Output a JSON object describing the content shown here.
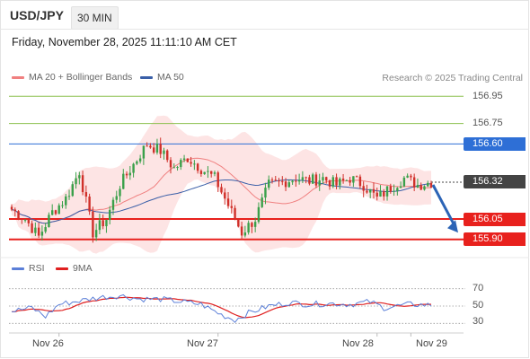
{
  "header": {
    "symbol": "USD/JPY",
    "timeframe": "30 MIN",
    "datetime": "Friday, November 28, 2025 11:11:10 AM CET"
  },
  "legend": {
    "ma20_label": "MA 20 + Bollinger Bands",
    "ma50_label": "MA 50",
    "source": "Research © 2025 Trading Central"
  },
  "colors": {
    "ma20": "#f08080",
    "ma50": "#3a5fa8",
    "band_fill": "#fde4e4",
    "up_candle": "#3aa04a",
    "down_candle": "#d0302a",
    "resistance_green": "#8cc04e",
    "pivot_blue": "#2e6fd6",
    "support_red": "#e8211d",
    "arrow": "#2c64b6",
    "rsi": "#5b7fd8",
    "rsi_ma": "#e02020"
  },
  "chart_data": [
    {
      "type": "candlestick",
      "title": "USD/JPY",
      "timeframe": "30 MIN",
      "ylim": [
        155.8,
        157.05
      ],
      "grid": false,
      "x_tick_labels": [
        "Nov 26",
        "Nov 27",
        "Nov 28",
        "Nov 29"
      ],
      "levels": [
        {
          "value": 156.95,
          "label": "156.95",
          "kind": "resistance",
          "color": "#8cc04e"
        },
        {
          "value": 156.75,
          "label": "156.75",
          "kind": "resistance",
          "color": "#8cc04e"
        },
        {
          "value": 156.6,
          "label": "156.60",
          "kind": "pivot",
          "color": "#2e6fd6"
        },
        {
          "value": 156.32,
          "label": "156.32",
          "kind": "last",
          "color": "#555555"
        },
        {
          "value": 156.05,
          "label": "156.05",
          "kind": "support",
          "color": "#e8211d"
        },
        {
          "value": 155.9,
          "label": "155.90",
          "kind": "support",
          "color": "#e8211d"
        }
      ],
      "anchors": [
        {
          "i": 0,
          "v": 156.12
        },
        {
          "i": 4,
          "v": 156.05
        },
        {
          "i": 8,
          "v": 155.92
        },
        {
          "i": 12,
          "v": 156.1
        },
        {
          "i": 16,
          "v": 156.2
        },
        {
          "i": 20,
          "v": 156.4
        },
        {
          "i": 24,
          "v": 155.95
        },
        {
          "i": 28,
          "v": 156.05
        },
        {
          "i": 32,
          "v": 156.3
        },
        {
          "i": 36,
          "v": 156.45
        },
        {
          "i": 40,
          "v": 156.6
        },
        {
          "i": 44,
          "v": 156.55
        },
        {
          "i": 48,
          "v": 156.42
        },
        {
          "i": 52,
          "v": 156.5
        },
        {
          "i": 56,
          "v": 156.42
        },
        {
          "i": 60,
          "v": 156.35
        },
        {
          "i": 64,
          "v": 156.15
        },
        {
          "i": 68,
          "v": 155.95
        },
        {
          "i": 72,
          "v": 156.05
        },
        {
          "i": 76,
          "v": 156.3
        },
        {
          "i": 80,
          "v": 156.32
        },
        {
          "i": 84,
          "v": 156.35
        },
        {
          "i": 88,
          "v": 156.33
        },
        {
          "i": 92,
          "v": 156.35
        },
        {
          "i": 96,
          "v": 156.3
        },
        {
          "i": 100,
          "v": 156.35
        },
        {
          "i": 104,
          "v": 156.3
        },
        {
          "i": 108,
          "v": 156.2
        },
        {
          "i": 112,
          "v": 156.28
        },
        {
          "i": 116,
          "v": 156.35
        },
        {
          "i": 120,
          "v": 156.3
        },
        {
          "i": 124,
          "v": 156.32
        }
      ],
      "candle_count": 125,
      "x_tick_positions": [
        14,
        61,
        108,
        118
      ],
      "forecast_arrow": {
        "from": 156.3,
        "to": 155.95
      }
    },
    {
      "type": "line",
      "name": "RSI",
      "series": [
        {
          "name": "RSI",
          "color": "#5b7fd8"
        },
        {
          "name": "9MA",
          "color": "#e02020"
        }
      ],
      "legend": [
        "RSI",
        "9MA"
      ],
      "ylim": [
        20,
        80
      ],
      "y_tick_labels": [
        "70",
        "50",
        "30"
      ],
      "y_ticks": [
        70,
        50,
        30
      ],
      "rsi_anchors": [
        {
          "i": 0,
          "v": 44
        },
        {
          "i": 6,
          "v": 48
        },
        {
          "i": 10,
          "v": 38
        },
        {
          "i": 14,
          "v": 52
        },
        {
          "i": 20,
          "v": 56
        },
        {
          "i": 26,
          "v": 60
        },
        {
          "i": 32,
          "v": 62
        },
        {
          "i": 38,
          "v": 58
        },
        {
          "i": 44,
          "v": 58
        },
        {
          "i": 50,
          "v": 55
        },
        {
          "i": 56,
          "v": 52
        },
        {
          "i": 62,
          "v": 40
        },
        {
          "i": 66,
          "v": 34
        },
        {
          "i": 70,
          "v": 42
        },
        {
          "i": 76,
          "v": 50
        },
        {
          "i": 82,
          "v": 54
        },
        {
          "i": 88,
          "v": 52
        },
        {
          "i": 94,
          "v": 53
        },
        {
          "i": 100,
          "v": 52
        },
        {
          "i": 106,
          "v": 55
        },
        {
          "i": 110,
          "v": 48
        },
        {
          "i": 114,
          "v": 50
        },
        {
          "i": 118,
          "v": 52
        },
        {
          "i": 124,
          "v": 51
        }
      ]
    }
  ]
}
